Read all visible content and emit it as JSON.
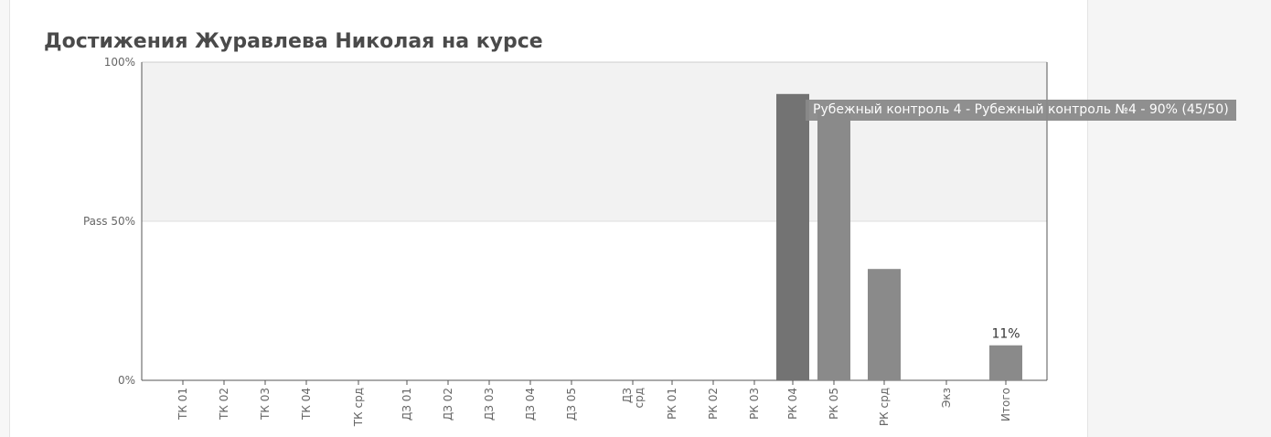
{
  "page": {
    "title": "Достижения Журавлева Николая на курсе"
  },
  "tooltip": {
    "text": "Рубежный контроль 4 - Рубежный контроль №4 - 90% (45/50)"
  },
  "colors": {
    "bar": "#8a8a8a",
    "bar_hover": "#737373",
    "pass_band": "#f2f2f2",
    "axis": "#555555",
    "tick_text": "#666666"
  },
  "chart_data": {
    "type": "bar",
    "title": "Достижения Журавлева Николая на курсе",
    "xlabel": "",
    "ylabel": "",
    "ylim": [
      0,
      100
    ],
    "y_ticks": [
      {
        "value": 100,
        "label": "100%"
      },
      {
        "value": 50,
        "label": "Pass 50%"
      },
      {
        "value": 0,
        "label": "0%"
      }
    ],
    "pass_threshold": 50,
    "categories": [
      "ТК 01",
      "ТК 02",
      "ТК 03",
      "ТК 04",
      "ТК срд",
      "ДЗ 01",
      "ДЗ 02",
      "ДЗ 03",
      "ДЗ 04",
      "ДЗ 05",
      "ДЗ срд",
      "РК 01",
      "РК 02",
      "РК 03",
      "РК 04",
      "РК 05",
      "РК срд",
      "Экз",
      "Итого"
    ],
    "values": [
      0,
      0,
      0,
      0,
      0,
      0,
      0,
      0,
      0,
      0,
      0,
      0,
      0,
      0,
      90,
      85,
      35,
      0,
      11
    ],
    "highlighted_category": "РК 04",
    "data_labels": [
      {
        "category": "Итого",
        "label": "11%"
      }
    ],
    "grid": false,
    "legend": "none"
  }
}
